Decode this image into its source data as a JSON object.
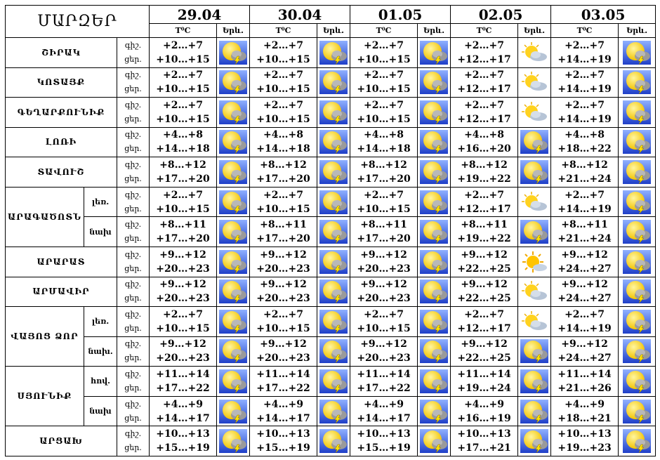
{
  "title": "ՄԱՐԶԵՐ",
  "dates": [
    "29.04",
    "30.04",
    "01.05",
    "02.05",
    "03.05"
  ],
  "col_temp": "T⁰C",
  "col_weather": "Երև.",
  "rows": [
    {
      "region": "ՇԻՐԱԿ",
      "tod": [
        "գիշ.",
        "ցեր."
      ],
      "days": [
        {
          "night": "+2…+7",
          "day": "+10…+15",
          "icon": "storm"
        },
        {
          "night": "+2…+7",
          "day": "+10…+15",
          "icon": "storm"
        },
        {
          "night": "+2…+7",
          "day": "+10…+15",
          "icon": "storm"
        },
        {
          "night": "+2…+7",
          "day": "+12…+17",
          "icon": "partly-cloudy"
        },
        {
          "night": "+2…+7",
          "day": "+14…+19",
          "icon": "storm"
        }
      ]
    },
    {
      "region": "ԿՈՏԱՅՔ",
      "tod": [
        "գիշ.",
        "ցեր."
      ],
      "days": [
        {
          "night": "+2…+7",
          "day": "+10…+15",
          "icon": "storm"
        },
        {
          "night": "+2…+7",
          "day": "+10…+15",
          "icon": "storm"
        },
        {
          "night": "+2…+7",
          "day": "+10…+15",
          "icon": "storm"
        },
        {
          "night": "+2…+7",
          "day": "+12…+17",
          "icon": "partly-cloudy"
        },
        {
          "night": "+2…+7",
          "day": "+14…+19",
          "icon": "storm"
        }
      ]
    },
    {
      "region": "ԳԵՂԱՐՔՈՒՆԻՔ",
      "tod": [
        "գիշ.",
        "ցեր."
      ],
      "days": [
        {
          "night": "+2…+7",
          "day": "+10…+15",
          "icon": "storm"
        },
        {
          "night": "+2…+7",
          "day": "+10…+15",
          "icon": "storm"
        },
        {
          "night": "+2…+7",
          "day": "+10…+15",
          "icon": "storm"
        },
        {
          "night": "+2…+7",
          "day": "+12…+17",
          "icon": "partly-cloudy"
        },
        {
          "night": "+2…+7",
          "day": "+14…+19",
          "icon": "storm"
        }
      ]
    },
    {
      "region": "ԼՈՌԻ",
      "tod": [
        "գիշ.",
        "ցեր."
      ],
      "days": [
        {
          "night": "+4…+8",
          "day": "+14…+18",
          "icon": "storm"
        },
        {
          "night": "+4…+8",
          "day": "+14…+18",
          "icon": "storm"
        },
        {
          "night": "+4…+8",
          "day": "+14…+18",
          "icon": "storm"
        },
        {
          "night": "+4…+8",
          "day": "+16…+20",
          "icon": "storm"
        },
        {
          "night": "+4…+8",
          "day": "+18…+22",
          "icon": "storm"
        }
      ]
    },
    {
      "region": "ՏԱՎՈՒՇ",
      "tod": [
        "գիշ.",
        "ցեր."
      ],
      "days": [
        {
          "night": "+8…+12",
          "day": "+17…+20",
          "icon": "storm"
        },
        {
          "night": "+8…+12",
          "day": "+17…+20",
          "icon": "storm"
        },
        {
          "night": "+8…+12",
          "day": "+17…+20",
          "icon": "storm"
        },
        {
          "night": "+8…+12",
          "day": "+19…+22",
          "icon": "storm"
        },
        {
          "night": "+8…+12",
          "day": "+21…+24",
          "icon": "storm"
        }
      ]
    },
    {
      "region": "ԱՐԱԳԱԾՈՏՆ",
      "sub": "լեռ.",
      "tod": [
        "գիշ.",
        "ցեր."
      ],
      "days": [
        {
          "night": "+2…+7",
          "day": "+10…+15",
          "icon": "storm"
        },
        {
          "night": "+2…+7",
          "day": "+10…+15",
          "icon": "storm"
        },
        {
          "night": "+2…+7",
          "day": "+10…+15",
          "icon": "storm"
        },
        {
          "night": "+2…+7",
          "day": "+12…+17",
          "icon": "partly-cloudy"
        },
        {
          "night": "+2…+7",
          "day": "+14…+19",
          "icon": "storm"
        }
      ]
    },
    {
      "region": "",
      "sub": "նախ",
      "tod": [
        "գիշ.",
        "ցեր."
      ],
      "days": [
        {
          "night": "+8…+11",
          "day": "+17…+20",
          "icon": "storm"
        },
        {
          "night": "+8…+11",
          "day": "+17…+20",
          "icon": "storm"
        },
        {
          "night": "+8…+11",
          "day": "+17…+20",
          "icon": "storm"
        },
        {
          "night": "+8…+11",
          "day": "+19…+22",
          "icon": "storm"
        },
        {
          "night": "+8…+11",
          "day": "+21…+24",
          "icon": "storm"
        }
      ]
    },
    {
      "region": "ԱՐԱՐԱՏ",
      "tod": [
        "գիշ.",
        "ցեր."
      ],
      "days": [
        {
          "night": "+9…+12",
          "day": "+20…+23",
          "icon": "storm"
        },
        {
          "night": "+9…+12",
          "day": "+20…+23",
          "icon": "storm"
        },
        {
          "night": "+9…+12",
          "day": "+20…+23",
          "icon": "storm"
        },
        {
          "night": "+9…+12",
          "day": "+22…+25",
          "icon": "sunny"
        },
        {
          "night": "+9…+12",
          "day": "+24…+27",
          "icon": "storm"
        }
      ]
    },
    {
      "region": "ԱՐՄԱՎԻՐ",
      "tod": [
        "գիշ.",
        "ցեր."
      ],
      "days": [
        {
          "night": "+9…+12",
          "day": "+20…+23",
          "icon": "storm"
        },
        {
          "night": "+9…+12",
          "day": "+20…+23",
          "icon": "storm"
        },
        {
          "night": "+9…+12",
          "day": "+20…+23",
          "icon": "storm"
        },
        {
          "night": "+9…+12",
          "day": "+22…+25",
          "icon": "partly-cloudy"
        },
        {
          "night": "+9…+12",
          "day": "+24…+27",
          "icon": "storm"
        }
      ]
    },
    {
      "region": "ՎԱՅՈՑ ՁՈՐ",
      "sub": "լեռ.",
      "tod": [
        "գիշ.",
        "ցեր."
      ],
      "days": [
        {
          "night": "+2…+7",
          "day": "+10…+15",
          "icon": "storm"
        },
        {
          "night": "+2…+7",
          "day": "+10…+15",
          "icon": "storm"
        },
        {
          "night": "+2…+7",
          "day": "+10…+15",
          "icon": "storm"
        },
        {
          "night": "+2…+7",
          "day": "+12…+17",
          "icon": "partly-cloudy"
        },
        {
          "night": "+2…+7",
          "day": "+14…+19",
          "icon": "storm"
        }
      ]
    },
    {
      "region": "",
      "sub": "նախ.",
      "tod": [
        "գիշ.",
        "ցեր."
      ],
      "days": [
        {
          "night": "+9…+12",
          "day": "+20…+23",
          "icon": "storm"
        },
        {
          "night": "+9…+12",
          "day": "+20…+23",
          "icon": "storm"
        },
        {
          "night": "+9…+12",
          "day": "+20…+23",
          "icon": "storm"
        },
        {
          "night": "+9…+12",
          "day": "+22…+25",
          "icon": "storm"
        },
        {
          "night": "+9…+12",
          "day": "+24…+27",
          "icon": "storm"
        }
      ]
    },
    {
      "region": "ՍՅՈՒՆԻՔ",
      "sub": "հով.",
      "tod": [
        "գիշ.",
        "ցեր."
      ],
      "days": [
        {
          "night": "+11…+14",
          "day": "+17…+22",
          "icon": "storm"
        },
        {
          "night": "+11…+14",
          "day": "+17…+22",
          "icon": "storm"
        },
        {
          "night": "+11…+14",
          "day": "+17…+22",
          "icon": "storm"
        },
        {
          "night": "+11…+14",
          "day": "+19…+24",
          "icon": "storm"
        },
        {
          "night": "+11…+14",
          "day": "+21…+26",
          "icon": "storm"
        }
      ]
    },
    {
      "region": "",
      "sub": "նախ",
      "tod": [
        "գիշ.",
        "ցեր."
      ],
      "days": [
        {
          "night": "+4…+9",
          "day": "+14…+17",
          "icon": "storm"
        },
        {
          "night": "+4…+9",
          "day": "+14…+17",
          "icon": "storm"
        },
        {
          "night": "+4…+9",
          "day": "+14…+17",
          "icon": "storm"
        },
        {
          "night": "+4…+9",
          "day": "+16…+19",
          "icon": "storm"
        },
        {
          "night": "+4…+9",
          "day": "+18…+21",
          "icon": "storm"
        }
      ]
    },
    {
      "region": "ԱՐՑԱԽ",
      "tod": [
        "գիշ.",
        "ցեր."
      ],
      "days": [
        {
          "night": "+10…+13",
          "day": "+15…+19",
          "icon": "storm"
        },
        {
          "night": "+10…+13",
          "day": "+15…+19",
          "icon": "storm"
        },
        {
          "night": "+10…+13",
          "day": "+15…+19",
          "icon": "storm"
        },
        {
          "night": "+10…+13",
          "day": "+17…+21",
          "icon": "storm"
        },
        {
          "night": "+10…+13",
          "day": "+19…+23",
          "icon": "storm"
        }
      ]
    }
  ]
}
